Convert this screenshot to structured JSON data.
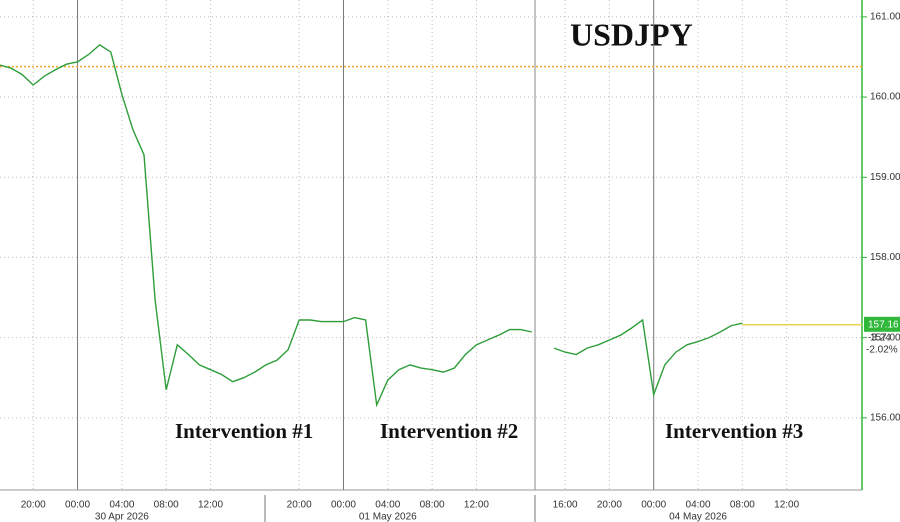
{
  "chart_data": {
    "type": "line",
    "title": "USDJPY",
    "categories": [
      null,
      null,
      null,
      "20:00",
      null,
      null,
      null,
      "00:00",
      null,
      null,
      null,
      "04:00",
      null,
      null,
      null,
      "08:00",
      null,
      null,
      null,
      "12:00",
      null,
      null,
      null,
      null,
      null,
      null,
      null,
      "20:00",
      null,
      null,
      null,
      "00:00",
      null,
      null,
      null,
      "04:00",
      null,
      null,
      null,
      "08:00",
      null,
      null,
      null,
      "12:00",
      null,
      null,
      null,
      null,
      null,
      null,
      null,
      "16:00",
      null,
      null,
      null,
      "20:00",
      null,
      null,
      null,
      "00:00",
      null,
      null,
      null,
      "04:00",
      null,
      null,
      null,
      "08:00",
      null,
      null,
      null,
      "12:00",
      null,
      null,
      null,
      null,
      null,
      null
    ],
    "x_date_labels": [
      "30 Apr 2026",
      "01 May 2026",
      "04 May 2026"
    ],
    "series": [
      {
        "name": "USDJPY",
        "color": "#2f9e3a",
        "values": [
          160.4,
          160.36,
          160.28,
          160.15,
          160.26,
          160.34,
          160.41,
          160.44,
          160.53,
          160.65,
          160.56,
          160.03,
          159.59,
          159.28,
          157.47,
          156.35,
          156.91,
          156.79,
          156.66,
          156.6,
          156.54,
          156.45,
          156.5,
          156.57,
          156.66,
          156.72,
          156.85,
          157.22,
          157.22,
          157.2,
          157.2,
          157.2,
          157.25,
          157.22,
          156.16,
          156.47,
          156.6,
          156.66,
          156.62,
          156.6,
          156.57,
          156.62,
          156.79,
          156.91,
          156.97,
          157.03,
          157.1,
          157.1,
          157.07,
          null,
          156.87,
          156.82,
          156.79,
          156.87,
          156.91,
          156.97,
          157.03,
          157.12,
          157.22,
          156.29,
          156.66,
          156.82,
          156.91,
          156.95,
          157.0,
          157.07,
          157.15,
          157.18,
          null,
          null,
          null,
          null,
          null,
          null,
          null,
          null,
          null,
          null
        ]
      }
    ],
    "ylim": [
      155.1,
      161.21
    ],
    "yticks": [
      {
        "value": 156,
        "label": "156.00"
      },
      {
        "value": 157,
        "label": "157.00"
      },
      {
        "value": 158,
        "label": "158.00"
      },
      {
        "value": 159,
        "label": "159.00"
      },
      {
        "value": 160,
        "label": "160.00"
      },
      {
        "value": 161,
        "label": "161.00"
      }
    ],
    "axis_color": "#2fb83a",
    "reference_line": {
      "value": 160.38,
      "color": "#f5a623"
    },
    "price_box": {
      "price": 157.16,
      "change": -3.24,
      "change_pct": {
        "value": -2.02,
        "label": "-2.02%"
      }
    },
    "annotations": [
      "Intervention #1",
      "Intervention #2",
      "Intervention #3"
    ]
  }
}
